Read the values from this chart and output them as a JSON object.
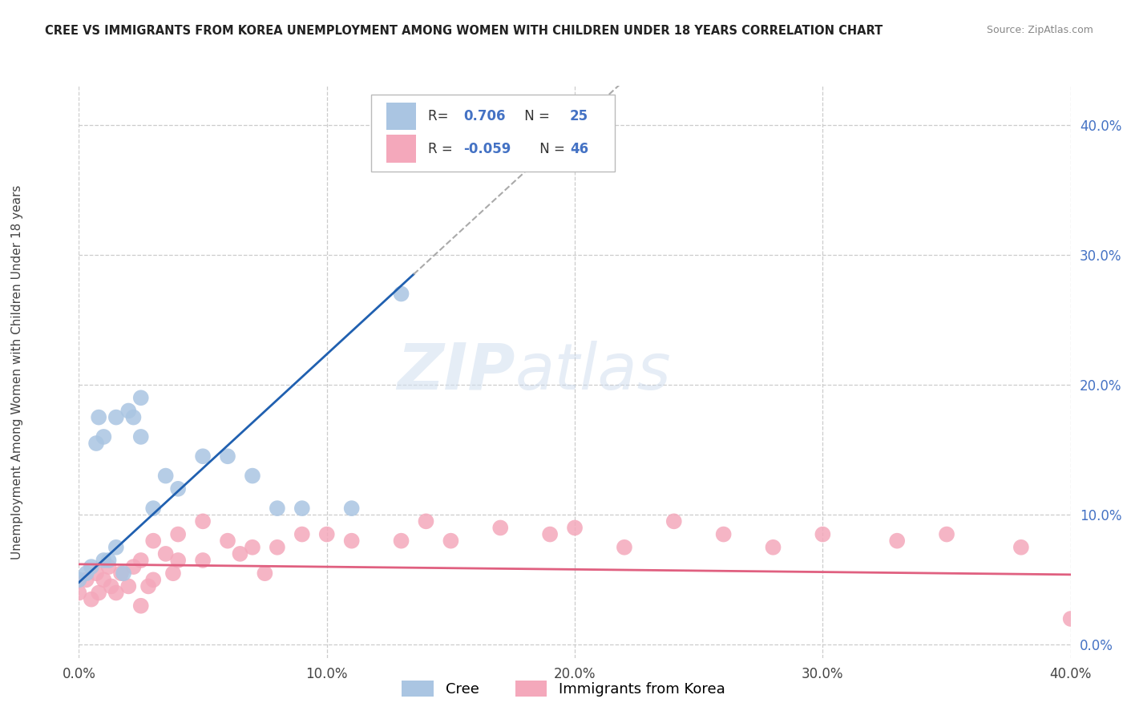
{
  "title": "CREE VS IMMIGRANTS FROM KOREA UNEMPLOYMENT AMONG WOMEN WITH CHILDREN UNDER 18 YEARS CORRELATION CHART",
  "source": "Source: ZipAtlas.com",
  "ylabel": "Unemployment Among Women with Children Under 18 years",
  "x_tick_labels": [
    "0.0%",
    "10.0%",
    "20.0%",
    "30.0%",
    "40.0%"
  ],
  "y_tick_labels_right": [
    "0.0%",
    "10.0%",
    "20.0%",
    "30.0%",
    "40.0%"
  ],
  "xlim": [
    0.0,
    0.4
  ],
  "ylim": [
    -0.01,
    0.43
  ],
  "cree_R": 0.706,
  "cree_N": 25,
  "korea_R": -0.059,
  "korea_N": 46,
  "cree_color": "#aac5e2",
  "korea_color": "#f4a8bb",
  "cree_line_color": "#2060b0",
  "korea_line_color": "#e06080",
  "watermark_zip": "ZIP",
  "watermark_atlas": "atlas",
  "legend_label_cree": "Cree",
  "legend_label_korea": "Immigrants from Korea",
  "cree_points_x": [
    0.0,
    0.003,
    0.005,
    0.007,
    0.008,
    0.01,
    0.01,
    0.012,
    0.015,
    0.015,
    0.018,
    0.02,
    0.022,
    0.025,
    0.025,
    0.03,
    0.035,
    0.04,
    0.05,
    0.06,
    0.07,
    0.08,
    0.09,
    0.11,
    0.13
  ],
  "cree_points_y": [
    0.05,
    0.055,
    0.06,
    0.155,
    0.175,
    0.065,
    0.16,
    0.065,
    0.075,
    0.175,
    0.055,
    0.18,
    0.175,
    0.19,
    0.16,
    0.105,
    0.13,
    0.12,
    0.145,
    0.145,
    0.13,
    0.105,
    0.105,
    0.105,
    0.27
  ],
  "korea_points_x": [
    0.0,
    0.003,
    0.005,
    0.007,
    0.008,
    0.01,
    0.012,
    0.013,
    0.015,
    0.017,
    0.02,
    0.022,
    0.025,
    0.025,
    0.028,
    0.03,
    0.03,
    0.035,
    0.038,
    0.04,
    0.04,
    0.05,
    0.05,
    0.06,
    0.065,
    0.07,
    0.075,
    0.08,
    0.09,
    0.1,
    0.11,
    0.13,
    0.14,
    0.15,
    0.17,
    0.19,
    0.2,
    0.22,
    0.24,
    0.26,
    0.28,
    0.3,
    0.33,
    0.35,
    0.38,
    0.4
  ],
  "korea_points_y": [
    0.04,
    0.05,
    0.035,
    0.055,
    0.04,
    0.05,
    0.06,
    0.045,
    0.04,
    0.055,
    0.045,
    0.06,
    0.03,
    0.065,
    0.045,
    0.05,
    0.08,
    0.07,
    0.055,
    0.085,
    0.065,
    0.095,
    0.065,
    0.08,
    0.07,
    0.075,
    0.055,
    0.075,
    0.085,
    0.085,
    0.08,
    0.08,
    0.095,
    0.08,
    0.09,
    0.085,
    0.09,
    0.075,
    0.095,
    0.085,
    0.075,
    0.085,
    0.08,
    0.085,
    0.075,
    0.02
  ],
  "cree_line_x0": 0.0,
  "cree_line_y0": 0.048,
  "cree_line_x1": 0.135,
  "cree_line_y1": 0.285,
  "korea_line_x0": 0.0,
  "korea_line_y0": 0.062,
  "korea_line_x1": 0.4,
  "korea_line_y1": 0.054
}
